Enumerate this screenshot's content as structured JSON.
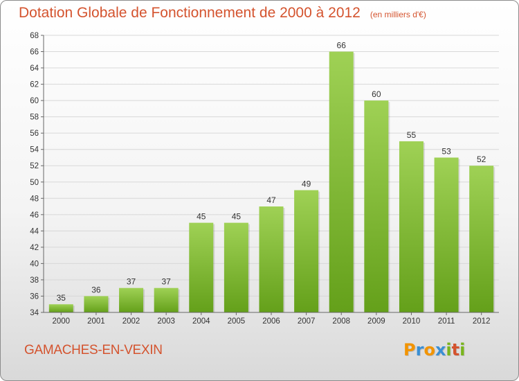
{
  "title": "Dotation Globale de Fonctionnement de 2000 à 2012",
  "unit_note": "(en milliers d'€)",
  "commune": "GAMACHES-EN-VEXIN",
  "logo": {
    "letters": [
      "P",
      "r",
      "o",
      "x",
      "i",
      "t",
      "i"
    ],
    "colors": [
      "#f29400",
      "#3a8fd4",
      "#f29400",
      "#3a8fd4",
      "#7ab51d",
      "#d4532e",
      "#7ab51d"
    ]
  },
  "chart_data": {
    "type": "bar",
    "title": "Dotation Globale de Fonctionnement de 2000 à 2012",
    "subtitle": "(en milliers d'€)",
    "categories": [
      "2000",
      "2001",
      "2002",
      "2003",
      "2004",
      "2005",
      "2006",
      "2007",
      "2008",
      "2009",
      "2010",
      "2011",
      "2012"
    ],
    "values": [
      35,
      36,
      37,
      37,
      45,
      45,
      47,
      49,
      66,
      60,
      55,
      53,
      52
    ],
    "ylim": [
      34,
      68
    ],
    "yticks": [
      34,
      36,
      38,
      40,
      42,
      44,
      46,
      48,
      50,
      52,
      54,
      56,
      58,
      60,
      62,
      64,
      66,
      68
    ],
    "grid": true,
    "bar_color_top": "#9fd155",
    "bar_color_bottom": "#64a01a"
  }
}
